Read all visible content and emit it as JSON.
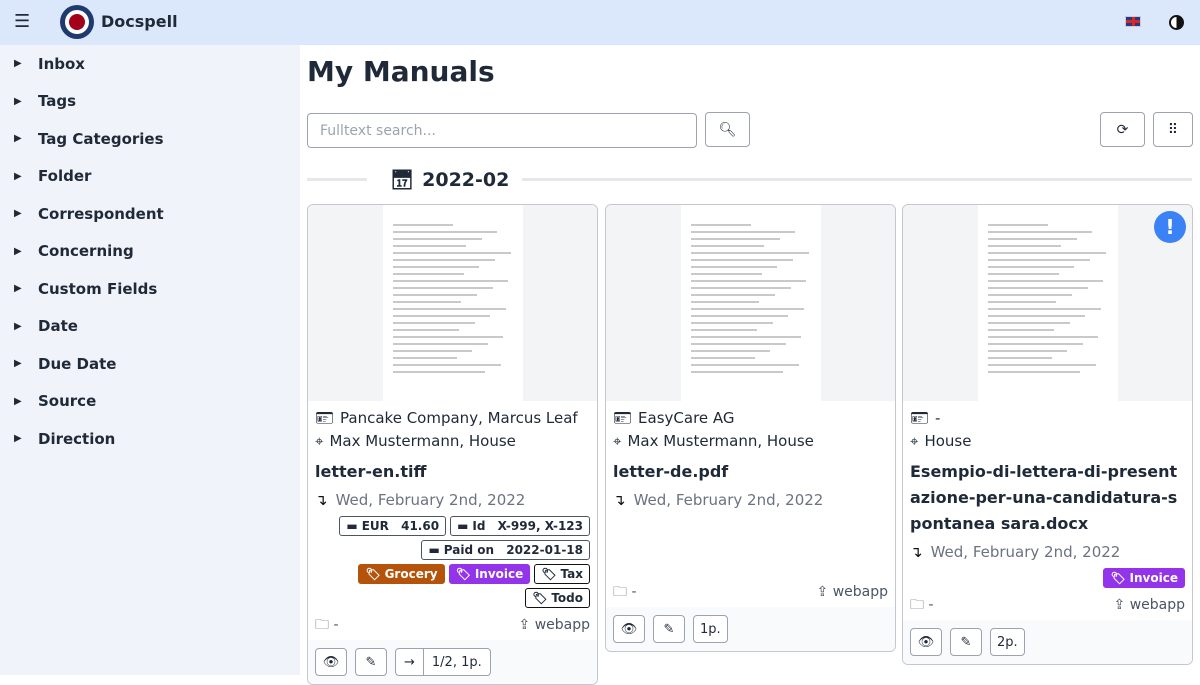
{
  "header": {
    "brand": "Docspell",
    "menu_icon": "hamburger-icon",
    "language": "uk-flag-icon",
    "theme_icon": "contrast-icon"
  },
  "sidebar": {
    "items": [
      {
        "label": "Inbox"
      },
      {
        "label": "Tags"
      },
      {
        "label": "Tag Categories"
      },
      {
        "label": "Folder"
      },
      {
        "label": "Correspondent"
      },
      {
        "label": "Concerning"
      },
      {
        "label": "Custom Fields"
      },
      {
        "label": "Date"
      },
      {
        "label": "Due Date"
      },
      {
        "label": "Source"
      },
      {
        "label": "Direction"
      }
    ]
  },
  "main": {
    "title": "My Manuals",
    "search_placeholder": "Fulltext search...",
    "group": "2022-02"
  },
  "colors": {
    "grocery": "#b45309",
    "invoice": "#9333ea",
    "accent": "#3b82f6"
  },
  "cards": [
    {
      "correspondent": "Pancake Company, Marcus Leaf",
      "concerning": "Max Mustermann, House",
      "name": "letter-en.tiff",
      "date": "Wed, February 2nd, 2022",
      "fields": [
        {
          "label": "EUR",
          "value": "41.60"
        },
        {
          "label": "Id",
          "value": "X-999, X-123"
        },
        {
          "label": "Paid on",
          "value": "2022-01-18"
        }
      ],
      "tags": [
        "Grocery",
        "Invoice",
        "Tax",
        "Todo"
      ],
      "folder": "-",
      "source": "webapp",
      "pages": "1/2, 1p."
    },
    {
      "correspondent": "EasyCare AG",
      "concerning": "Max Mustermann, House",
      "name": "letter-de.pdf",
      "date": "Wed, February 2nd, 2022",
      "folder": "-",
      "source": "webapp",
      "pages": "1p."
    },
    {
      "correspondent": "-",
      "concerning": "House",
      "name": "Esempio-di-lettera-di-presentazione-per-una-candidatura-spontanea sara.docx",
      "date": "Wed, February 2nd, 2022",
      "tags": [
        "Invoice"
      ],
      "folder": "-",
      "source": "webapp",
      "pages": "2p.",
      "alert": "!"
    }
  ]
}
